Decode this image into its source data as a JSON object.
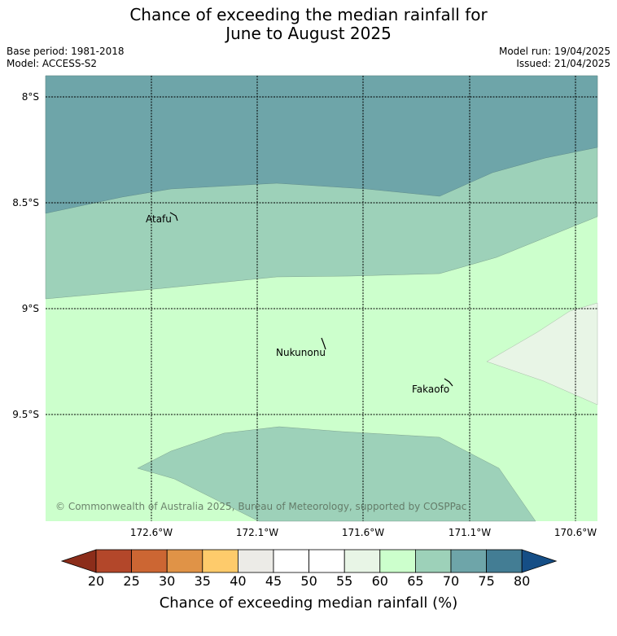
{
  "header": {
    "title_line1": "Chance of exceeding the median rainfall for",
    "title_line2": "June to August 2025",
    "base_period": "Base period: 1981-2018",
    "model": "Model: ACCESS-S2",
    "model_run": "Model run: 19/04/2025",
    "issued": "Issued: 21/04/2025"
  },
  "map": {
    "lat_labels": [
      "8°S",
      "8.5°S",
      "9°S",
      "9.5°S"
    ],
    "lon_labels": [
      "172.6°W",
      "172.1°W",
      "171.6°W",
      "171.1°W",
      "170.6°W"
    ],
    "places": [
      "Atafu",
      "Nukunonu",
      "Fakaofo"
    ],
    "copyright": "© Commonwealth of Australia 2025, Bureau of Meteorology, supported by COSPPac"
  },
  "colorbar": {
    "tick_labels": [
      "20",
      "25",
      "30",
      "35",
      "40",
      "45",
      "50",
      "55",
      "60",
      "65",
      "70",
      "75",
      "80"
    ],
    "colors": [
      "#8c2d1a",
      "#b3472a",
      "#cc6633",
      "#e09347",
      "#fecb6b",
      "#ecebe7",
      "#ffffff",
      "#ffffff",
      "#e8f5e6",
      "#ccffcc",
      "#9dd1b9",
      "#6ea5a9",
      "#437d94",
      "#154e86"
    ],
    "title": "Chance of exceeding median rainfall (%)"
  },
  "legend_colors": {
    "zone_75_80": "#6ea5a9",
    "zone_70_75": "#9dd1b9",
    "zone_65_70": "#ccffcc",
    "zone_60_65": "#e8f5e6"
  }
}
